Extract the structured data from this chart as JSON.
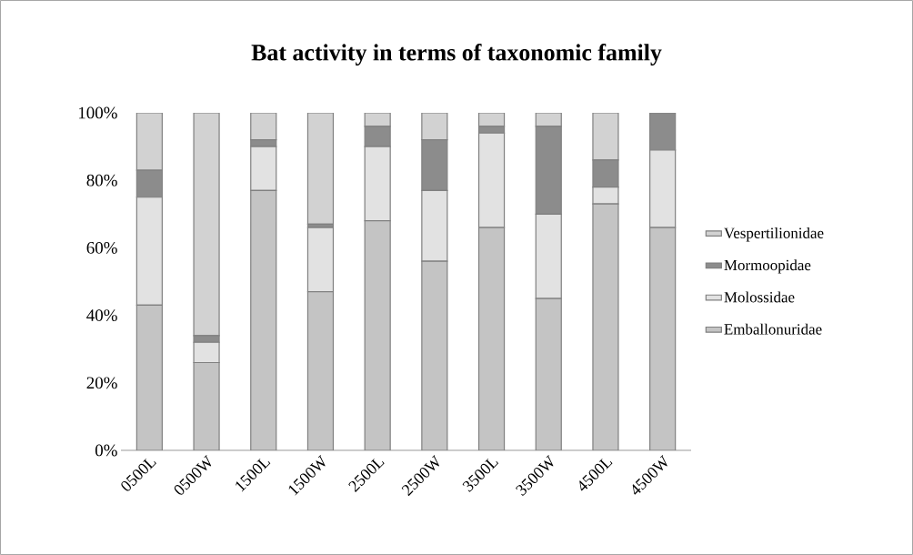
{
  "chart_data": {
    "type": "bar",
    "stacked": true,
    "title": "Bat activity in terms of taxonomic family",
    "categories": [
      "0500L",
      "0500W",
      "1500L",
      "1500W",
      "2500L",
      "2500W",
      "3500L",
      "3500W",
      "4500L",
      "4500W"
    ],
    "series": [
      {
        "name": "Emballonuridae",
        "color": "#c4c4c4",
        "values": [
          43,
          26,
          77,
          47,
          68,
          56,
          66,
          45,
          73,
          66
        ]
      },
      {
        "name": "Molossidae",
        "color": "#e2e2e2",
        "values": [
          32,
          6,
          13,
          19,
          22,
          21,
          28,
          25,
          5,
          23
        ]
      },
      {
        "name": "Mormoopidae",
        "color": "#8c8c8c",
        "values": [
          8,
          2,
          2,
          1,
          6,
          15,
          2,
          26,
          8,
          11
        ]
      },
      {
        "name": "Vespertilionidae",
        "color": "#d2d2d2",
        "values": [
          17,
          66,
          8,
          33,
          4,
          8,
          4,
          4,
          14,
          0
        ]
      }
    ],
    "ylim": [
      0,
      100
    ],
    "yticks": [
      {
        "value": 0,
        "label": "0%"
      },
      {
        "value": 20,
        "label": "20%"
      },
      {
        "value": 40,
        "label": "40%"
      },
      {
        "value": 60,
        "label": "60%"
      },
      {
        "value": 80,
        "label": "80%"
      },
      {
        "value": 100,
        "label": "100%"
      }
    ],
    "legend": "right",
    "grid": false
  }
}
